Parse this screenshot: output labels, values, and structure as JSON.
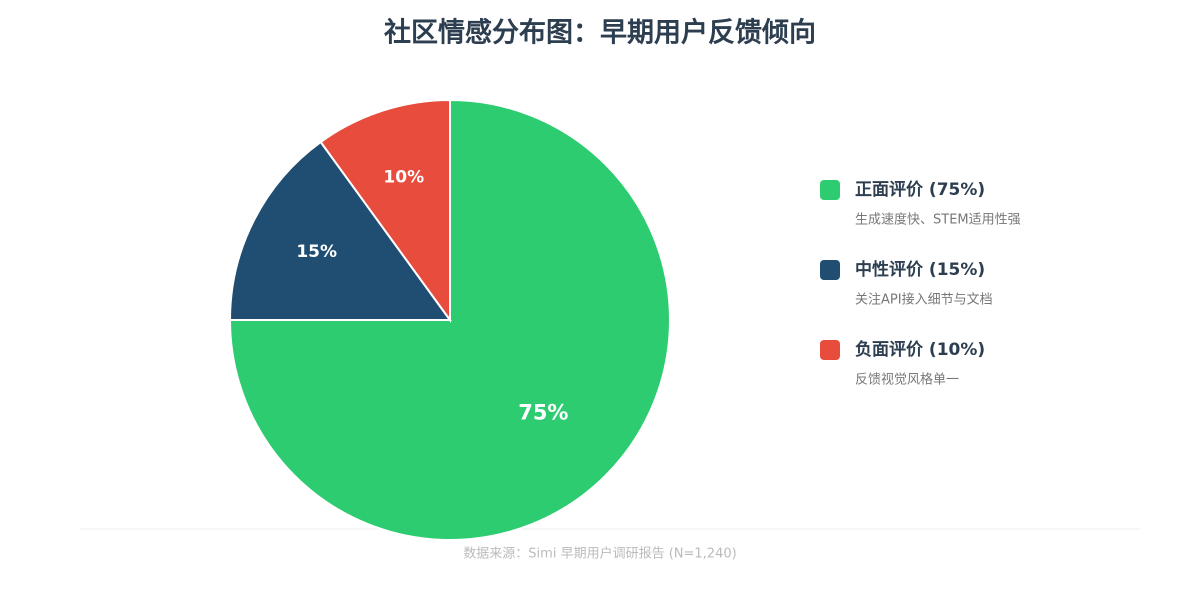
{
  "chart_data": {
    "type": "pie",
    "title": "社区情感分布图：早期用户反馈倾向",
    "categories": [
      "正面评价 (75%)",
      "中性评价 (15%)",
      "负面评价 (10%)"
    ],
    "descriptions": [
      "生成速度快、STEM适用性强",
      "关注API接入细节与文档",
      "反馈视觉风格单一"
    ],
    "values": [
      75,
      15,
      10
    ],
    "value_labels": [
      "75%",
      "15%",
      "10%"
    ],
    "colors": [
      "#2ecc71",
      "#1f4e72",
      "#e74c3c"
    ],
    "source": "数据来源：Simi 早期用户调研报告 (N=1,240)"
  }
}
